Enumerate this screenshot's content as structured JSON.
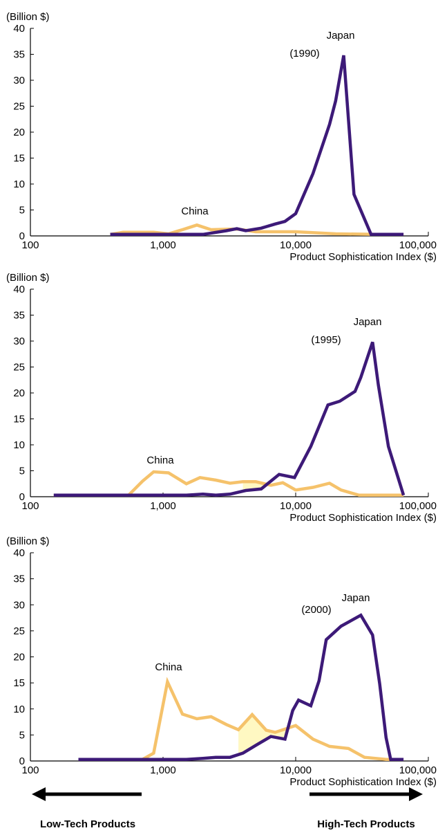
{
  "colors": {
    "japan": "#3d1a78",
    "china": "#f5c26b",
    "china_fill": "#fff8c2",
    "axis": "#000000"
  },
  "chart_data": [
    {
      "type": "line",
      "unit_label": "(Billion $)",
      "xlabel": "Product Sophistication Index ($)",
      "x_scale": "log",
      "xlim": [
        100,
        100000
      ],
      "ylim": [
        0,
        40
      ],
      "x_ticks": [
        100,
        1000,
        10000,
        100000
      ],
      "x_tick_labels": [
        "100",
        "1,000",
        "10,000",
        "100,000"
      ],
      "y_ticks": [
        0,
        5,
        10,
        15,
        20,
        25,
        30,
        35,
        40
      ],
      "y_tick_labels": [
        "0",
        "5",
        "10",
        "15",
        "20",
        "25",
        "30",
        "35",
        "40"
      ],
      "year_label": "(1990)",
      "china_fill": false,
      "series": [
        {
          "name": "Japan",
          "color": "#3d1a78",
          "points": [
            [
              400,
              0.3
            ],
            [
              1500,
              0.3
            ],
            [
              2000,
              0.3
            ],
            [
              3000,
              1.0
            ],
            [
              3600,
              1.4
            ],
            [
              4200,
              1.0
            ],
            [
              5500,
              1.5
            ],
            [
              7000,
              2.3
            ],
            [
              8300,
              2.8
            ],
            [
              10000,
              4.3
            ],
            [
              13500,
              12.0
            ],
            [
              18000,
              21.5
            ],
            [
              20000,
              26.0
            ],
            [
              23000,
              34.8
            ],
            [
              27500,
              8.0
            ],
            [
              37000,
              0.3
            ],
            [
              50000,
              0.3
            ],
            [
              65000,
              0.3
            ]
          ]
        },
        {
          "name": "China",
          "color": "#f5c26b",
          "points": [
            [
              400,
              0.3
            ],
            [
              500,
              0.7
            ],
            [
              850,
              0.7
            ],
            [
              1100,
              0.4
            ],
            [
              1400,
              1.2
            ],
            [
              1800,
              2.1
            ],
            [
              2300,
              1.2
            ],
            [
              3200,
              1.3
            ],
            [
              3700,
              1.3
            ],
            [
              5000,
              0.8
            ],
            [
              7000,
              0.8
            ],
            [
              10000,
              0.8
            ],
            [
              20000,
              0.4
            ],
            [
              40000,
              0.3
            ],
            [
              65000,
              0.3
            ]
          ]
        }
      ]
    },
    {
      "type": "line",
      "unit_label": "(Billion $)",
      "xlabel": "Product Sophistication Index ($)",
      "x_scale": "log",
      "xlim": [
        100,
        100000
      ],
      "ylim": [
        0,
        40
      ],
      "x_ticks": [
        100,
        1000,
        10000,
        100000
      ],
      "x_tick_labels": [
        "100",
        "1,000",
        "10,000",
        "100,000"
      ],
      "y_ticks": [
        0,
        5,
        10,
        15,
        20,
        25,
        30,
        35,
        40
      ],
      "y_tick_labels": [
        "0",
        "5",
        "10",
        "15",
        "20",
        "25",
        "30",
        "35",
        "40"
      ],
      "year_label": "(1995)",
      "china_fill": true,
      "series": [
        {
          "name": "Japan",
          "color": "#3d1a78",
          "points": [
            [
              150,
              0.3
            ],
            [
              1000,
              0.3
            ],
            [
              1500,
              0.3
            ],
            [
              2000,
              0.5
            ],
            [
              2500,
              0.3
            ],
            [
              3200,
              0.5
            ],
            [
              4200,
              1.2
            ],
            [
              5500,
              1.5
            ],
            [
              7500,
              4.3
            ],
            [
              9800,
              3.7
            ],
            [
              13000,
              9.7
            ],
            [
              17500,
              17.7
            ],
            [
              21500,
              18.4
            ],
            [
              28000,
              20.3
            ],
            [
              31000,
              23.0
            ],
            [
              38000,
              29.8
            ],
            [
              42000,
              21.5
            ],
            [
              50000,
              9.7
            ],
            [
              65000,
              0.3
            ]
          ]
        },
        {
          "name": "China",
          "color": "#f5c26b",
          "points": [
            [
              150,
              0.3
            ],
            [
              550,
              0.3
            ],
            [
              700,
              3.0
            ],
            [
              850,
              4.8
            ],
            [
              1100,
              4.6
            ],
            [
              1500,
              2.5
            ],
            [
              1900,
              3.7
            ],
            [
              2500,
              3.2
            ],
            [
              3200,
              2.6
            ],
            [
              4000,
              2.9
            ],
            [
              5000,
              2.9
            ],
            [
              6500,
              2.2
            ],
            [
              8000,
              2.7
            ],
            [
              10000,
              1.3
            ],
            [
              13500,
              1.8
            ],
            [
              18000,
              2.6
            ],
            [
              22000,
              1.3
            ],
            [
              30000,
              0.3
            ],
            [
              65000,
              0.3
            ]
          ]
        }
      ]
    },
    {
      "type": "line",
      "unit_label": "(Billion $)",
      "xlabel": "Product Sophistication Index ($)",
      "x_scale": "log",
      "xlim": [
        100,
        100000
      ],
      "ylim": [
        0,
        40
      ],
      "x_ticks": [
        100,
        1000,
        10000,
        100000
      ],
      "x_tick_labels": [
        "100",
        "1,000",
        "10,000",
        "100,000"
      ],
      "y_ticks": [
        0,
        5,
        10,
        15,
        20,
        25,
        30,
        35,
        40
      ],
      "y_tick_labels": [
        "0",
        "5",
        "10",
        "15",
        "20",
        "25",
        "30",
        "35",
        "40"
      ],
      "year_label": "(2000)",
      "china_fill": true,
      "series": [
        {
          "name": "Japan",
          "color": "#3d1a78",
          "points": [
            [
              230,
              0.3
            ],
            [
              1000,
              0.3
            ],
            [
              1500,
              0.3
            ],
            [
              2000,
              0.5
            ],
            [
              2500,
              0.7
            ],
            [
              3200,
              0.7
            ],
            [
              4000,
              1.5
            ],
            [
              5000,
              3.0
            ],
            [
              6500,
              4.7
            ],
            [
              8300,
              4.2
            ],
            [
              9500,
              9.7
            ],
            [
              10500,
              11.7
            ],
            [
              13000,
              10.6
            ],
            [
              15000,
              15.4
            ],
            [
              17000,
              23.3
            ],
            [
              22000,
              25.9
            ],
            [
              31000,
              28.0
            ],
            [
              38000,
              24.2
            ],
            [
              43000,
              14.8
            ],
            [
              48000,
              4.5
            ],
            [
              52000,
              0.3
            ],
            [
              65000,
              0.3
            ]
          ]
        },
        {
          "name": "China",
          "color": "#f5c26b",
          "points": [
            [
              230,
              0.3
            ],
            [
              700,
              0.3
            ],
            [
              850,
              1.5
            ],
            [
              1080,
              15.2
            ],
            [
              1400,
              9.0
            ],
            [
              1800,
              8.1
            ],
            [
              2300,
              8.5
            ],
            [
              3000,
              7.0
            ],
            [
              3700,
              6.0
            ],
            [
              4700,
              8.9
            ],
            [
              6000,
              5.9
            ],
            [
              7000,
              5.5
            ],
            [
              10000,
              6.8
            ],
            [
              13500,
              4.2
            ],
            [
              18000,
              2.8
            ],
            [
              25000,
              2.4
            ],
            [
              33000,
              0.7
            ],
            [
              48000,
              0.3
            ],
            [
              65000,
              0.3
            ]
          ]
        }
      ]
    }
  ],
  "annotations": {
    "japan_label": "Japan",
    "china_label": "China"
  },
  "footer": {
    "low_tech_label": "Low-Tech Products",
    "high_tech_label": "High-Tech Products"
  }
}
